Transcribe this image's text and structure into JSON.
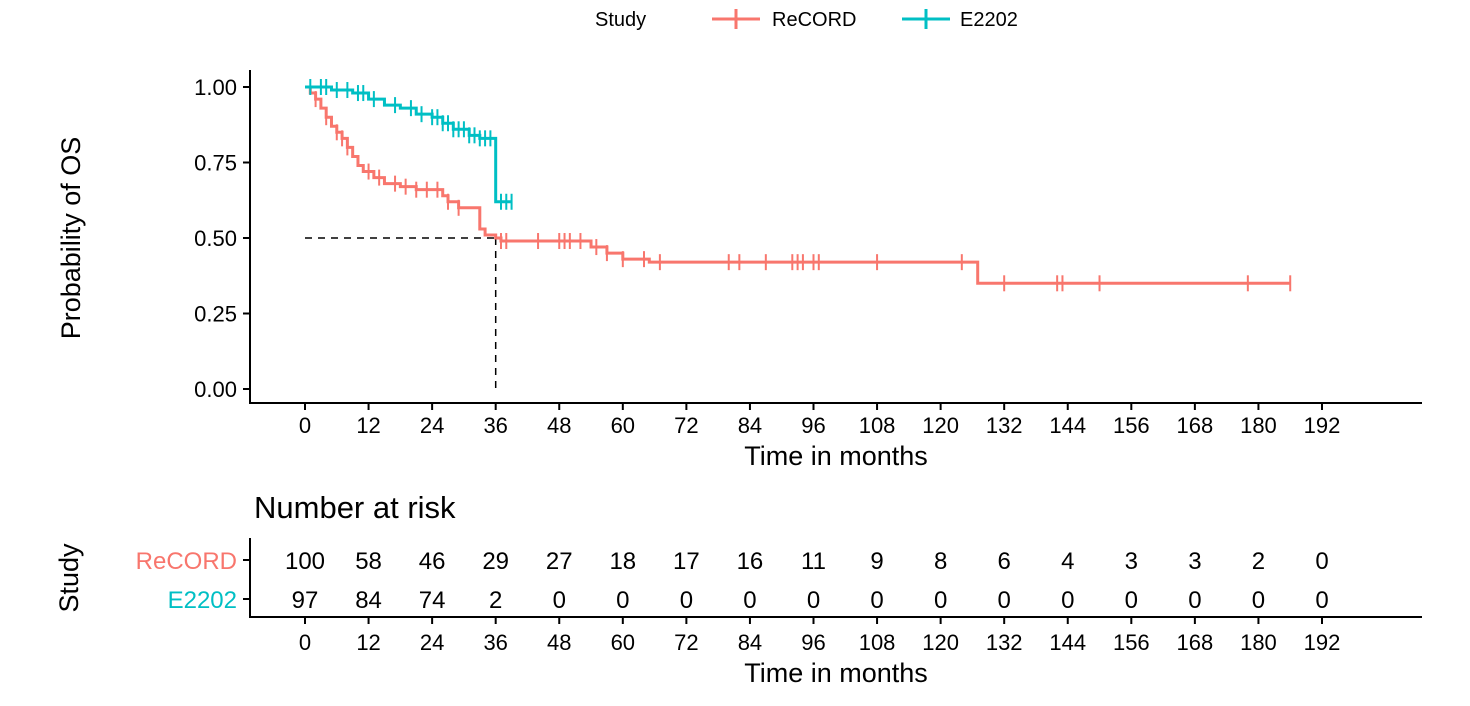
{
  "chart_data": {
    "type": "line",
    "subtype": "kaplan-meier",
    "legend": {
      "title": "Study",
      "placement": "top"
    },
    "xlabel": "Time in months",
    "ylabel": "Probability of OS",
    "xlim": [
      0,
      192
    ],
    "ylim": [
      0,
      1
    ],
    "xticks": [
      0,
      12,
      24,
      36,
      48,
      60,
      72,
      84,
      96,
      108,
      120,
      132,
      144,
      156,
      168,
      180,
      192
    ],
    "yticks": [
      "0.00",
      "0.25",
      "0.50",
      "0.75",
      "1.00"
    ],
    "yticks_values": [
      0,
      0.25,
      0.5,
      0.75,
      1
    ],
    "grid": false,
    "median_line": {
      "y": 0.5,
      "x": 36
    },
    "series": [
      {
        "name": "ReCORD",
        "color": "#F8766D",
        "steps": [
          [
            0,
            1.0
          ],
          [
            1,
            0.98
          ],
          [
            2,
            0.96
          ],
          [
            3,
            0.93
          ],
          [
            4,
            0.9
          ],
          [
            5,
            0.87
          ],
          [
            6,
            0.85
          ],
          [
            7,
            0.83
          ],
          [
            8,
            0.8
          ],
          [
            9,
            0.77
          ],
          [
            10,
            0.74
          ],
          [
            11,
            0.72
          ],
          [
            13,
            0.7
          ],
          [
            15,
            0.68
          ],
          [
            18,
            0.67
          ],
          [
            21,
            0.66
          ],
          [
            26,
            0.64
          ],
          [
            27,
            0.62
          ],
          [
            29,
            0.6
          ],
          [
            33,
            0.53
          ],
          [
            34,
            0.51
          ],
          [
            36,
            0.5
          ],
          [
            37,
            0.49
          ],
          [
            54,
            0.47
          ],
          [
            57,
            0.45
          ],
          [
            60,
            0.43
          ],
          [
            65,
            0.42
          ],
          [
            127,
            0.35
          ]
        ],
        "end": 186,
        "censor": [
          2,
          4,
          6,
          7,
          8,
          12,
          14,
          17,
          19,
          21,
          23,
          25,
          27,
          29,
          37,
          38,
          44,
          48,
          49,
          50,
          52,
          55,
          57,
          60,
          64,
          67,
          80,
          82,
          87,
          92,
          93,
          94,
          96,
          97,
          108,
          124,
          132,
          142,
          143,
          150,
          178,
          186
        ]
      },
      {
        "name": "E2202",
        "color": "#00BFC4",
        "steps": [
          [
            0,
            1.0
          ],
          [
            5,
            0.99
          ],
          [
            9,
            0.98
          ],
          [
            12,
            0.96
          ],
          [
            15,
            0.94
          ],
          [
            18,
            0.93
          ],
          [
            21,
            0.91
          ],
          [
            24,
            0.9
          ],
          [
            26,
            0.88
          ],
          [
            28,
            0.86
          ],
          [
            31,
            0.84
          ],
          [
            33,
            0.83
          ],
          [
            36,
            0.62
          ]
        ],
        "end": 39,
        "censor": [
          1,
          3,
          4,
          6,
          8,
          10,
          11,
          13,
          17,
          20,
          22,
          24,
          25,
          26,
          27,
          28,
          29,
          30,
          31,
          32,
          33,
          34,
          35,
          37,
          38,
          39
        ]
      }
    ],
    "risk_table": {
      "title": "Number at risk",
      "ylabel": "Study",
      "xlabel": "Time in months",
      "rows": [
        {
          "name": "ReCORD",
          "color": "#F8766D",
          "values": [
            100,
            58,
            46,
            29,
            27,
            18,
            17,
            16,
            11,
            9,
            8,
            6,
            4,
            3,
            3,
            2,
            0
          ]
        },
        {
          "name": "E2202",
          "color": "#00BFC4",
          "values": [
            97,
            84,
            74,
            2,
            0,
            0,
            0,
            0,
            0,
            0,
            0,
            0,
            0,
            0,
            0,
            0,
            0
          ]
        }
      ]
    }
  }
}
